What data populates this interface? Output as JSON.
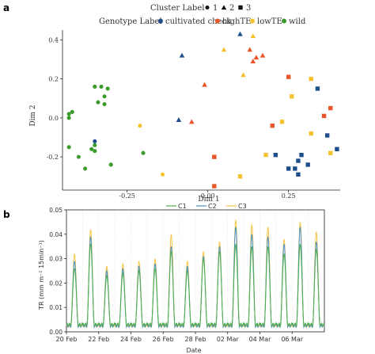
{
  "panel_a_label": "a",
  "panel_b_label": "b",
  "chart_data": [
    {
      "type": "scatter",
      "xlabel": "Dim 1",
      "ylabel": "Dim 2",
      "xlim": [
        -0.45,
        0.41
      ],
      "ylim": [
        -0.37,
        0.45
      ],
      "xticks": [
        "-0.25",
        "0.00",
        "0.25"
      ],
      "xtick_values": [
        -0.25,
        0.0,
        0.25
      ],
      "yticks": [
        "-0.2",
        "0.0",
        "0.2",
        "0.4"
      ],
      "ytick_values": [
        -0.2,
        0.0,
        0.2,
        0.4
      ],
      "grid": false,
      "legend_cluster": {
        "title": "Cluster Label",
        "entries": [
          {
            "label": "1",
            "shape": "circle"
          },
          {
            "label": "2",
            "shape": "triangle"
          },
          {
            "label": "3",
            "shape": "square"
          }
        ]
      },
      "legend_genotype": {
        "title": "Genotype Label",
        "entries": [
          {
            "label": "cultivated check",
            "color": "#1f4e8c"
          },
          {
            "label": "highTE",
            "color": "#e8552a"
          },
          {
            "label": "lowTE",
            "color": "#f5c22e"
          },
          {
            "label": "wild",
            "color": "#3a9a2a"
          }
        ]
      },
      "points": [
        {
          "x": -0.43,
          "y": 0.02,
          "g": "wild",
          "c": "1"
        },
        {
          "x": -0.43,
          "y": 0.0,
          "g": "wild",
          "c": "1"
        },
        {
          "x": -0.42,
          "y": 0.03,
          "g": "wild",
          "c": "1"
        },
        {
          "x": -0.43,
          "y": -0.15,
          "g": "wild",
          "c": "1"
        },
        {
          "x": -0.4,
          "y": -0.2,
          "g": "wild",
          "c": "1"
        },
        {
          "x": -0.38,
          "y": -0.26,
          "g": "wild",
          "c": "1"
        },
        {
          "x": -0.36,
          "y": -0.16,
          "g": "wild",
          "c": "1"
        },
        {
          "x": -0.35,
          "y": -0.14,
          "g": "wild",
          "c": "1"
        },
        {
          "x": -0.35,
          "y": -0.17,
          "g": "wild",
          "c": "1"
        },
        {
          "x": -0.35,
          "y": 0.16,
          "g": "wild",
          "c": "1"
        },
        {
          "x": -0.34,
          "y": 0.08,
          "g": "wild",
          "c": "1"
        },
        {
          "x": -0.33,
          "y": 0.16,
          "g": "wild",
          "c": "1"
        },
        {
          "x": -0.32,
          "y": 0.11,
          "g": "wild",
          "c": "1"
        },
        {
          "x": -0.31,
          "y": 0.15,
          "g": "wild",
          "c": "1"
        },
        {
          "x": -0.32,
          "y": 0.07,
          "g": "wild",
          "c": "1"
        },
        {
          "x": -0.3,
          "y": -0.24,
          "g": "wild",
          "c": "1"
        },
        {
          "x": -0.2,
          "y": -0.18,
          "g": "wild",
          "c": "1"
        },
        {
          "x": -0.35,
          "y": -0.12,
          "g": "cultivated check",
          "c": "1"
        },
        {
          "x": -0.21,
          "y": -0.04,
          "g": "lowTE",
          "c": "1"
        },
        {
          "x": -0.14,
          "y": -0.29,
          "g": "lowTE",
          "c": "1"
        },
        {
          "x": -0.08,
          "y": 0.32,
          "g": "cultivated check",
          "c": "2"
        },
        {
          "x": -0.09,
          "y": -0.01,
          "g": "cultivated check",
          "c": "2"
        },
        {
          "x": -0.05,
          "y": -0.02,
          "g": "highTE",
          "c": "2"
        },
        {
          "x": -0.01,
          "y": 0.17,
          "g": "highTE",
          "c": "2"
        },
        {
          "x": 0.1,
          "y": 0.43,
          "g": "cultivated check",
          "c": "2"
        },
        {
          "x": 0.14,
          "y": 0.42,
          "g": "lowTE",
          "c": "2"
        },
        {
          "x": 0.05,
          "y": 0.35,
          "g": "lowTE",
          "c": "2"
        },
        {
          "x": 0.13,
          "y": 0.35,
          "g": "highTE",
          "c": "2"
        },
        {
          "x": 0.15,
          "y": 0.31,
          "g": "highTE",
          "c": "2"
        },
        {
          "x": 0.17,
          "y": 0.32,
          "g": "highTE",
          "c": "2"
        },
        {
          "x": 0.14,
          "y": 0.29,
          "g": "highTE",
          "c": "2"
        },
        {
          "x": 0.11,
          "y": 0.22,
          "g": "lowTE",
          "c": "2"
        },
        {
          "x": 0.02,
          "y": -0.2,
          "g": "highTE",
          "c": "3"
        },
        {
          "x": 0.02,
          "y": -0.35,
          "g": "highTE",
          "c": "3"
        },
        {
          "x": 0.1,
          "y": -0.3,
          "g": "lowTE",
          "c": "3"
        },
        {
          "x": 0.18,
          "y": -0.19,
          "g": "lowTE",
          "c": "3"
        },
        {
          "x": 0.2,
          "y": -0.04,
          "g": "highTE",
          "c": "3"
        },
        {
          "x": 0.25,
          "y": 0.21,
          "g": "highTE",
          "c": "3"
        },
        {
          "x": 0.26,
          "y": 0.11,
          "g": "lowTE",
          "c": "3"
        },
        {
          "x": 0.23,
          "y": -0.02,
          "g": "lowTE",
          "c": "3"
        },
        {
          "x": 0.25,
          "y": -0.26,
          "g": "cultivated check",
          "c": "3"
        },
        {
          "x": 0.27,
          "y": -0.26,
          "g": "cultivated check",
          "c": "3"
        },
        {
          "x": 0.28,
          "y": -0.29,
          "g": "cultivated check",
          "c": "3"
        },
        {
          "x": 0.28,
          "y": -0.22,
          "g": "cultivated check",
          "c": "3"
        },
        {
          "x": 0.29,
          "y": -0.19,
          "g": "cultivated check",
          "c": "3"
        },
        {
          "x": 0.21,
          "y": -0.19,
          "g": "cultivated check",
          "c": "3"
        },
        {
          "x": 0.31,
          "y": -0.24,
          "g": "cultivated check",
          "c": "3"
        },
        {
          "x": 0.32,
          "y": 0.2,
          "g": "lowTE",
          "c": "3"
        },
        {
          "x": 0.34,
          "y": 0.15,
          "g": "cultivated check",
          "c": "3"
        },
        {
          "x": 0.32,
          "y": -0.08,
          "g": "lowTE",
          "c": "3"
        },
        {
          "x": 0.36,
          "y": 0.01,
          "g": "highTE",
          "c": "3"
        },
        {
          "x": 0.38,
          "y": 0.05,
          "g": "highTE",
          "c": "3"
        },
        {
          "x": 0.37,
          "y": -0.09,
          "g": "cultivated check",
          "c": "3"
        },
        {
          "x": 0.38,
          "y": -0.18,
          "g": "lowTE",
          "c": "3"
        },
        {
          "x": 0.4,
          "y": -0.16,
          "g": "cultivated check",
          "c": "3"
        }
      ]
    },
    {
      "type": "line",
      "xlabel": "Date",
      "ylabel": "TR (mm m⁻² 15min⁻¹)",
      "ylim": [
        0,
        0.05
      ],
      "yticks": [
        "0.00",
        "0.01",
        "0.02",
        "0.03",
        "0.04",
        "0.05"
      ],
      "ytick_values": [
        0,
        0.01,
        0.02,
        0.03,
        0.04,
        0.05
      ],
      "xticks": [
        "20 Feb",
        "22 Feb",
        "24 Feb",
        "26 Feb",
        "28 Feb",
        "02 Mar",
        "04 Mar",
        "06 Mar"
      ],
      "day_range": [
        "20 Feb",
        "07 Mar"
      ],
      "grid": "vertical dotted",
      "legend_placement": "top",
      "series": [
        {
          "name": "C1",
          "color": "#4caf50",
          "daily_peaks": [
            0.026,
            0.036,
            0.023,
            0.024,
            0.025,
            0.026,
            0.033,
            0.025,
            0.03,
            0.033,
            0.036,
            0.035,
            0.035,
            0.032,
            0.036,
            0.034
          ],
          "baseline": 0.003
        },
        {
          "name": "C2",
          "color": "#4a90c2",
          "daily_peaks": [
            0.029,
            0.039,
            0.025,
            0.026,
            0.027,
            0.028,
            0.035,
            0.027,
            0.031,
            0.035,
            0.043,
            0.04,
            0.039,
            0.036,
            0.043,
            0.037
          ],
          "baseline": 0.0025
        },
        {
          "name": "C3",
          "color": "#f5c542",
          "daily_peaks": [
            0.032,
            0.042,
            0.027,
            0.028,
            0.029,
            0.03,
            0.04,
            0.029,
            0.033,
            0.037,
            0.046,
            0.044,
            0.043,
            0.038,
            0.045,
            0.041
          ],
          "baseline": 0.0025
        }
      ]
    }
  ]
}
